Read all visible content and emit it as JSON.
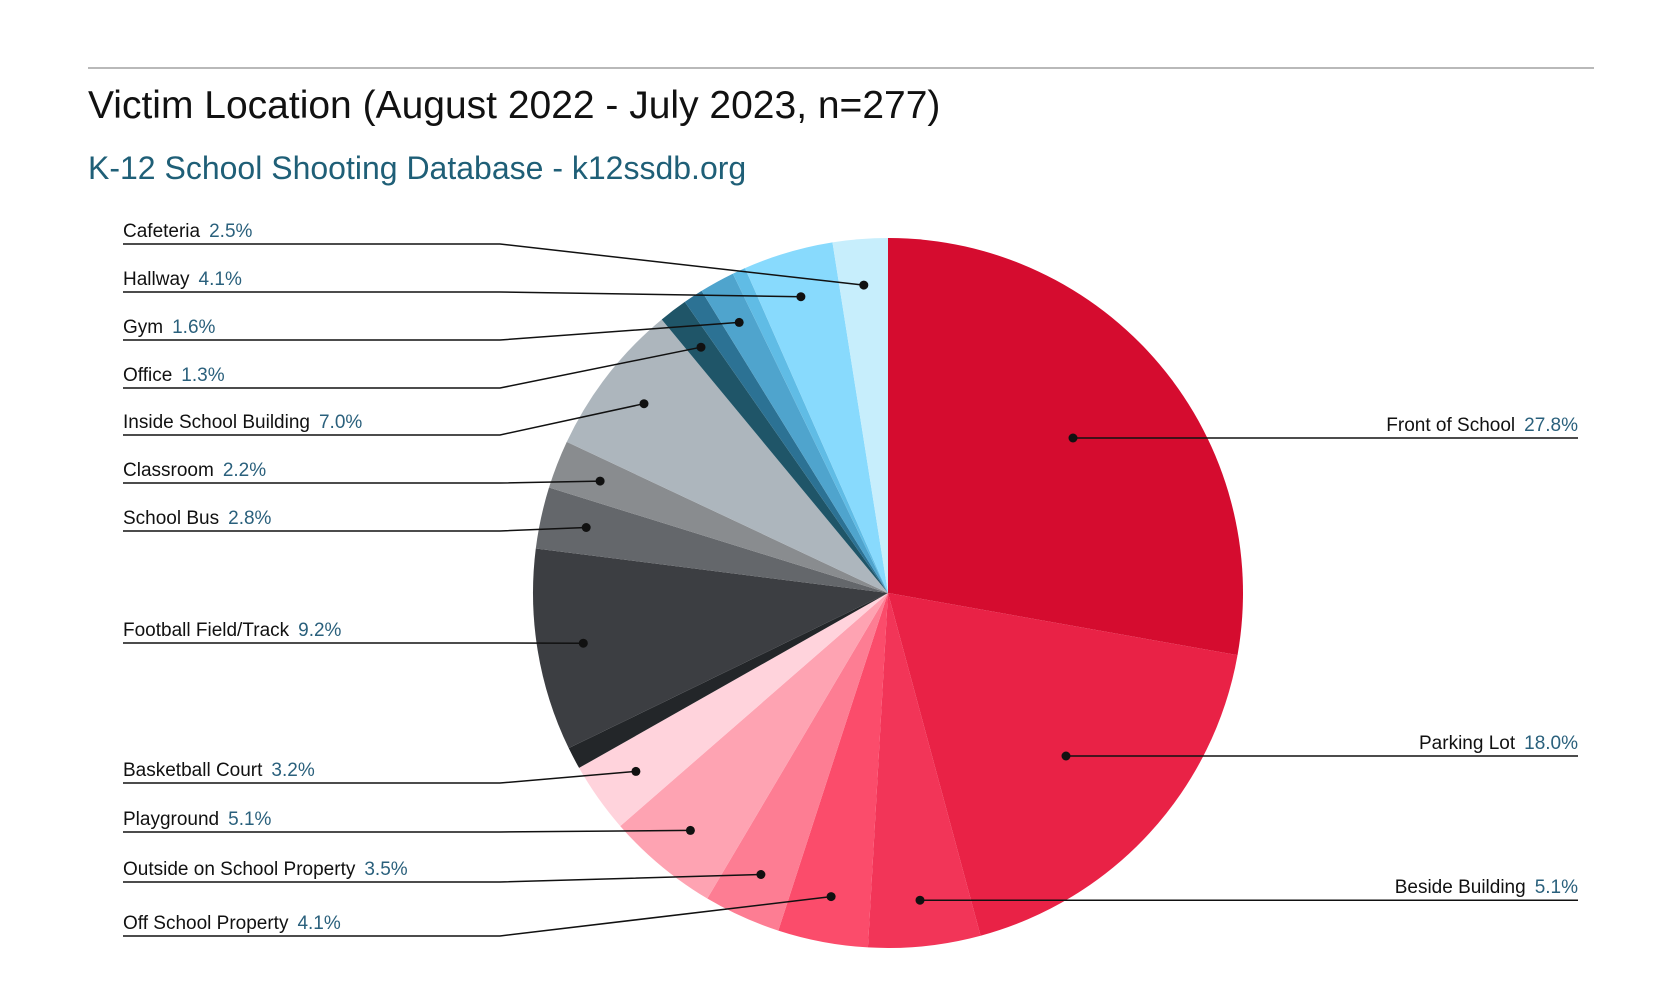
{
  "title": "Victim Location (August 2022 - July 2023, n=277)",
  "subtitle": "K-12 School Shooting Database - k12ssdb.org",
  "chart_data": {
    "type": "pie",
    "title": "Victim Location (August 2022 - July 2023, n=277)",
    "subtitle": "K-12 School Shooting Database - k12ssdb.org",
    "slices": [
      {
        "label": "Front of School",
        "value": 27.8,
        "display": "27.8%",
        "color": "#d50c2f",
        "label_side": "right"
      },
      {
        "label": "Parking Lot",
        "value": 18.0,
        "display": "18.0%",
        "color": "#e92246",
        "label_side": "right"
      },
      {
        "label": "Beside Building",
        "value": 5.1,
        "display": "5.1%",
        "color": "#f23558",
        "label_side": "right"
      },
      {
        "label": "Off School Property",
        "value": 4.1,
        "display": "4.1%",
        "color": "#fb4c6b",
        "label_side": "left"
      },
      {
        "label": "Outside on School Property",
        "value": 3.5,
        "display": "3.5%",
        "color": "#fd7d93",
        "label_side": "left"
      },
      {
        "label": "Playground",
        "value": 5.1,
        "display": "5.1%",
        "color": "#fea3b2",
        "label_side": "left"
      },
      {
        "label": "Basketball Court",
        "value": 3.2,
        "display": "3.2%",
        "color": "#ffd3dc",
        "label_side": "left"
      },
      {
        "label": "",
        "value": 1.0,
        "display": "",
        "color": "#232629",
        "label_side": "none"
      },
      {
        "label": "Football Field/Track",
        "value": 9.2,
        "display": "9.2%",
        "color": "#3c3e42",
        "label_side": "left"
      },
      {
        "label": "School Bus",
        "value": 2.8,
        "display": "2.8%",
        "color": "#64676b",
        "label_side": "left"
      },
      {
        "label": "Classroom",
        "value": 2.2,
        "display": "2.2%",
        "color": "#898c8f",
        "label_side": "left"
      },
      {
        "label": "Inside School Building",
        "value": 7.0,
        "display": "7.0%",
        "color": "#adb6bd",
        "label_side": "left"
      },
      {
        "label": "Office",
        "value": 1.3,
        "display": "1.3%",
        "color": "#1f5568",
        "label_side": "left"
      },
      {
        "label": "",
        "value": 0.9,
        "display": "",
        "color": "#2c7294",
        "label_side": "none"
      },
      {
        "label": "Gym",
        "value": 1.6,
        "display": "1.6%",
        "color": "#4fa4cd",
        "label_side": "left"
      },
      {
        "label": "",
        "value": 0.6,
        "display": "",
        "color": "#60bce5",
        "label_side": "none"
      },
      {
        "label": "Hallway",
        "value": 4.1,
        "display": "4.1%",
        "color": "#88dafd",
        "label_side": "left"
      },
      {
        "label": "Cafeteria",
        "value": 2.5,
        "display": "2.5%",
        "color": "#c7eefc",
        "label_side": "left"
      }
    ],
    "legend": "none",
    "label_style": "leader lines with name and percentage"
  }
}
